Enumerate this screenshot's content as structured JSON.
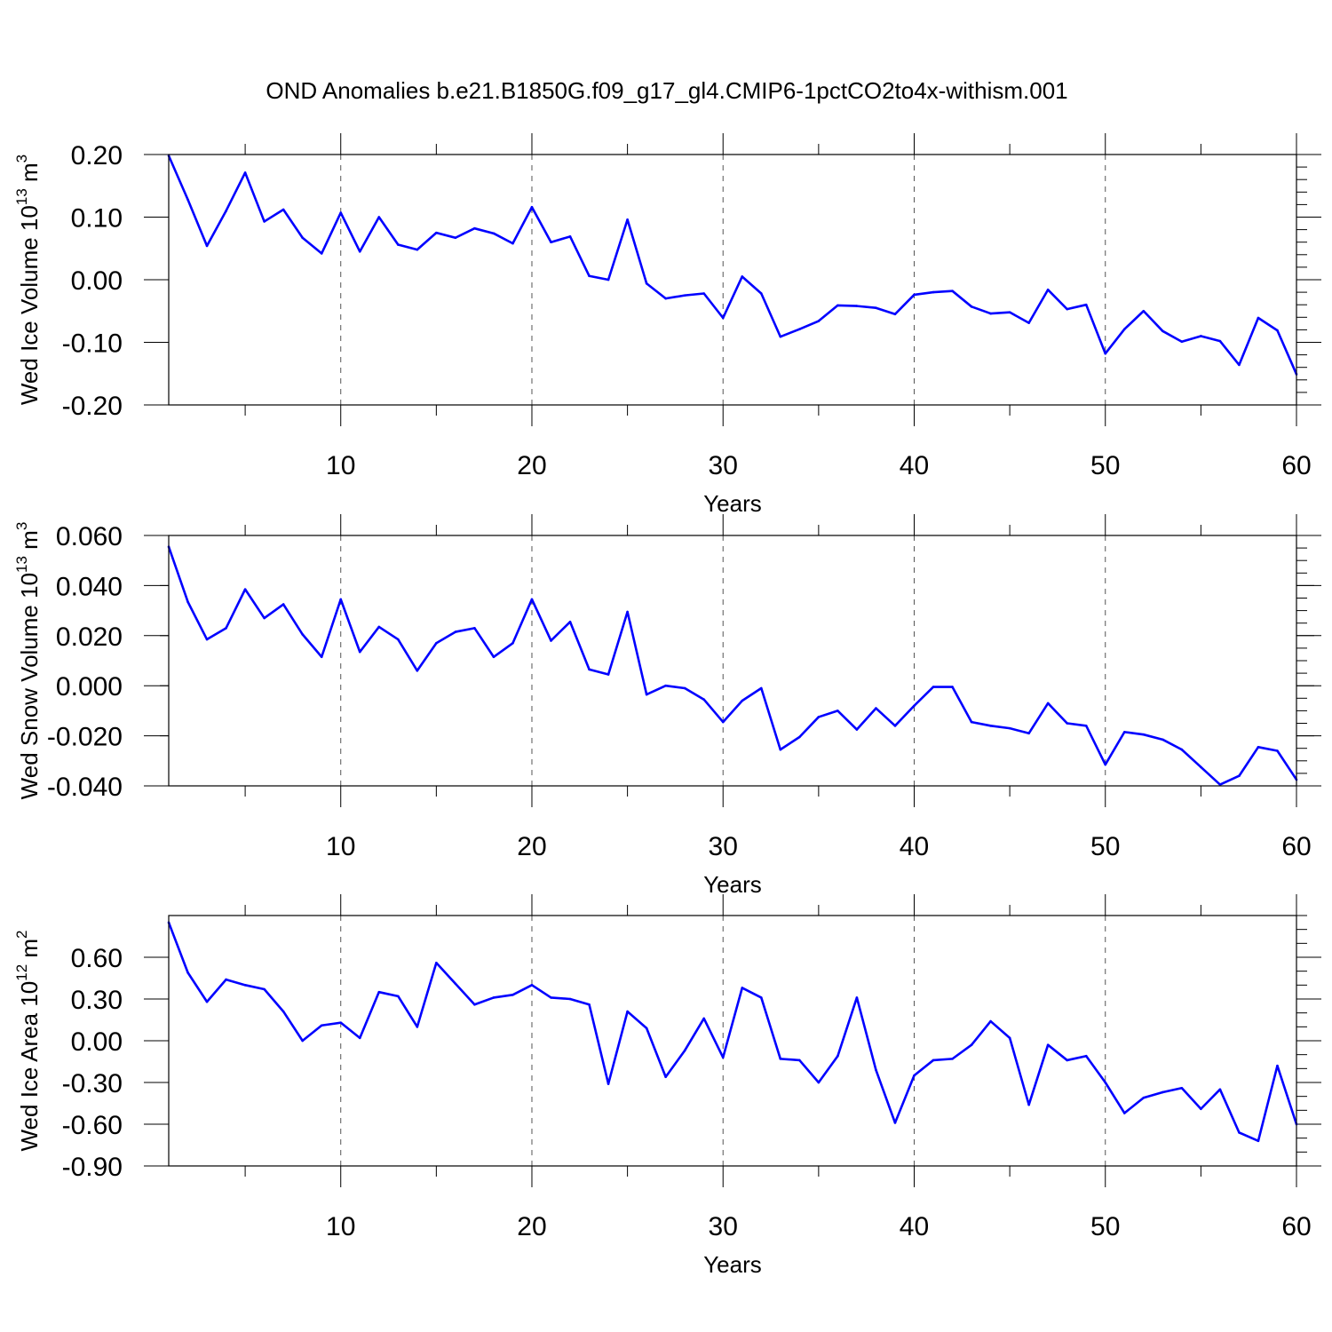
{
  "figure": {
    "title": "OND Anomalies b.e21.B1850G.f09_g17_gl4.CMIP6-1pctCO2to4x-withism.001"
  },
  "chart_data": [
    {
      "type": "line",
      "title": "OND Anomalies b.e21.B1850G.f09_g17_gl4.CMIP6-1pctCO2to4x-withism.001",
      "xlabel": "Years",
      "ylabel": {
        "base": "Wed Ice Volume 10",
        "exp": "13",
        "unit": " m",
        "unit_exp": "3"
      },
      "xlim": [
        1,
        60
      ],
      "ylim": [
        -0.2,
        0.2
      ],
      "xticks": [
        10,
        20,
        30,
        40,
        50,
        60
      ],
      "xtick_labels": [
        "10",
        "20",
        "30",
        "40",
        "50",
        "60"
      ],
      "yticks": [
        -0.2,
        -0.1,
        0.0,
        0.1,
        0.2
      ],
      "ytick_labels": [
        "-0.20",
        "-0.10",
        "0.00",
        "0.10",
        "0.20"
      ],
      "yminor_step": 0.02,
      "grid": "dashed vertical at major x ticks",
      "color": "#0000ff",
      "series": [
        {
          "name": "Wed Ice Volume",
          "x": [
            1,
            2,
            3,
            4,
            5,
            6,
            7,
            8,
            9,
            10,
            11,
            12,
            13,
            14,
            15,
            16,
            17,
            18,
            19,
            20,
            21,
            22,
            23,
            24,
            25,
            26,
            27,
            28,
            29,
            30,
            31,
            32,
            33,
            34,
            35,
            36,
            37,
            38,
            39,
            40,
            41,
            42,
            43,
            44,
            45,
            46,
            47,
            48,
            49,
            50,
            51,
            52,
            53,
            54,
            55,
            56,
            57,
            58,
            59,
            60
          ],
          "values": [
            0.198,
            0.128,
            0.054,
            0.11,
            0.171,
            0.093,
            0.112,
            0.067,
            0.042,
            0.107,
            0.045,
            0.1,
            0.056,
            0.048,
            0.075,
            0.067,
            0.082,
            0.074,
            0.058,
            0.116,
            0.06,
            0.069,
            0.006,
            0.0,
            0.096,
            -0.006,
            -0.03,
            -0.025,
            -0.022,
            -0.061,
            0.005,
            -0.022,
            -0.091,
            -0.079,
            -0.066,
            -0.041,
            -0.042,
            -0.045,
            -0.055,
            -0.024,
            -0.02,
            -0.018,
            -0.043,
            -0.054,
            -0.052,
            -0.069,
            -0.016,
            -0.047,
            -0.04,
            -0.118,
            -0.079,
            -0.05,
            -0.082,
            -0.099,
            -0.09,
            -0.098,
            -0.136,
            -0.061,
            -0.081,
            -0.151
          ]
        }
      ]
    },
    {
      "type": "line",
      "xlabel": "Years",
      "ylabel": {
        "base": "Wed Snow Volume 10",
        "exp": "13",
        "unit": " m",
        "unit_exp": "3"
      },
      "xlim": [
        1,
        60
      ],
      "ylim": [
        -0.04,
        0.06
      ],
      "xticks": [
        10,
        20,
        30,
        40,
        50,
        60
      ],
      "xtick_labels": [
        "10",
        "20",
        "30",
        "40",
        "50",
        "60"
      ],
      "yticks": [
        -0.04,
        -0.02,
        0.0,
        0.02,
        0.04,
        0.06
      ],
      "ytick_labels": [
        "-0.040",
        "-0.020",
        "0.000",
        "0.020",
        "0.040",
        "0.060"
      ],
      "yminor_step": 0.005,
      "grid": "dashed vertical at major x ticks",
      "color": "#0000ff",
      "series": [
        {
          "name": "Wed Snow Volume",
          "x": [
            1,
            2,
            3,
            4,
            5,
            6,
            7,
            8,
            9,
            10,
            11,
            12,
            13,
            14,
            15,
            16,
            17,
            18,
            19,
            20,
            21,
            22,
            23,
            24,
            25,
            26,
            27,
            28,
            29,
            30,
            31,
            32,
            33,
            34,
            35,
            36,
            37,
            38,
            39,
            40,
            41,
            42,
            43,
            44,
            45,
            46,
            47,
            48,
            49,
            50,
            51,
            52,
            53,
            54,
            55,
            56,
            57,
            58,
            59,
            60
          ],
          "values": [
            0.0555,
            0.0335,
            0.0185,
            0.023,
            0.0385,
            0.027,
            0.0325,
            0.0205,
            0.0115,
            0.0345,
            0.0135,
            0.0235,
            0.0185,
            0.006,
            0.017,
            0.0215,
            0.023,
            0.0115,
            0.017,
            0.0345,
            0.018,
            0.0255,
            0.0065,
            0.0045,
            0.0295,
            -0.0035,
            0.0,
            -0.001,
            -0.0055,
            -0.0145,
            -0.006,
            -0.001,
            -0.0255,
            -0.0205,
            -0.0125,
            -0.01,
            -0.0175,
            -0.009,
            -0.016,
            -0.008,
            -0.0005,
            -0.0005,
            -0.0145,
            -0.016,
            -0.017,
            -0.019,
            -0.007,
            -0.015,
            -0.016,
            -0.0315,
            -0.0185,
            -0.0195,
            -0.0215,
            -0.0255,
            -0.0325,
            -0.0395,
            -0.036,
            -0.0245,
            -0.026,
            -0.0375
          ]
        }
      ]
    },
    {
      "type": "line",
      "xlabel": "Years",
      "ylabel": {
        "base": "Wed Ice Area 10",
        "exp": "12",
        "unit": " m",
        "unit_exp": "2"
      },
      "xlim": [
        1,
        60
      ],
      "ylim": [
        -0.9,
        0.9
      ],
      "xticks": [
        10,
        20,
        30,
        40,
        50,
        60
      ],
      "xtick_labels": [
        "10",
        "20",
        "30",
        "40",
        "50",
        "60"
      ],
      "yticks": [
        -0.9,
        -0.6,
        -0.3,
        0.0,
        0.3,
        0.6
      ],
      "ytick_labels": [
        "-0.90",
        "-0.60",
        "-0.30",
        "0.00",
        "0.30",
        "0.60"
      ],
      "yminor_step": 0.1,
      "grid": "dashed vertical at major x ticks",
      "color": "#0000ff",
      "series": [
        {
          "name": "Wed Ice Area",
          "x": [
            1,
            2,
            3,
            4,
            5,
            6,
            7,
            8,
            9,
            10,
            11,
            12,
            13,
            14,
            15,
            16,
            17,
            18,
            19,
            20,
            21,
            22,
            23,
            24,
            25,
            26,
            27,
            28,
            29,
            30,
            31,
            32,
            33,
            34,
            35,
            36,
            37,
            38,
            39,
            40,
            41,
            42,
            43,
            44,
            45,
            46,
            47,
            48,
            49,
            50,
            51,
            52,
            53,
            54,
            55,
            56,
            57,
            58,
            59,
            60
          ],
          "values": [
            0.85,
            0.49,
            0.28,
            0.44,
            0.4,
            0.37,
            0.21,
            0.0,
            0.11,
            0.13,
            0.02,
            0.35,
            0.32,
            0.1,
            0.56,
            0.41,
            0.26,
            0.31,
            0.33,
            0.4,
            0.31,
            0.3,
            0.26,
            -0.31,
            0.21,
            0.09,
            -0.26,
            -0.07,
            0.16,
            -0.12,
            0.38,
            0.31,
            -0.13,
            -0.14,
            -0.3,
            -0.11,
            0.31,
            -0.21,
            -0.59,
            -0.25,
            -0.14,
            -0.13,
            -0.03,
            0.14,
            0.02,
            -0.46,
            -0.03,
            -0.14,
            -0.11,
            -0.3,
            -0.52,
            -0.41,
            -0.37,
            -0.34,
            -0.49,
            -0.35,
            -0.66,
            -0.72,
            -0.18,
            -0.6
          ]
        }
      ]
    }
  ]
}
